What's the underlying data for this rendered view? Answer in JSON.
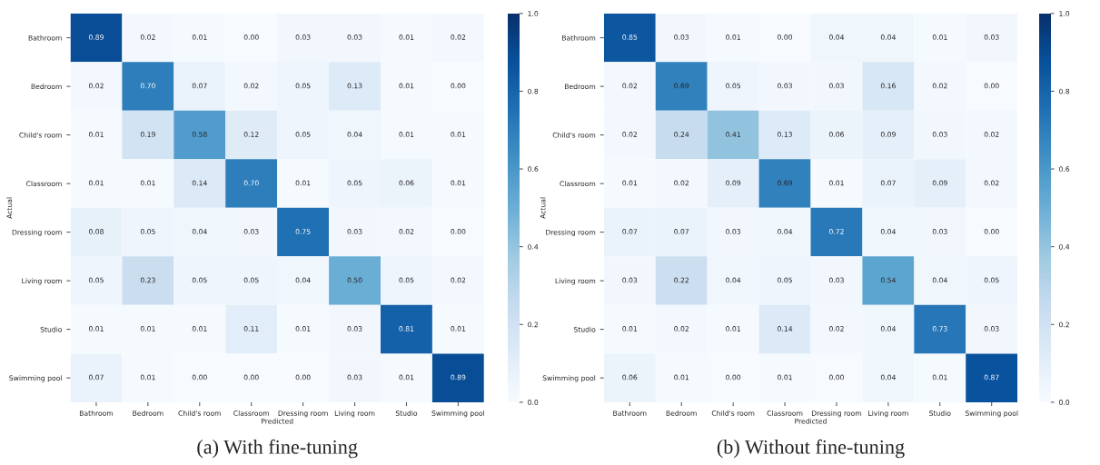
{
  "chart_data": [
    {
      "type": "heatmap",
      "title": "(a) With fine-tuning",
      "xlabel": "Predicted",
      "ylabel": "Actual",
      "categories": [
        "Bathroom",
        "Bedroom",
        "Child's room",
        "Classroom",
        "Dressing room",
        "Living room",
        "Studio",
        "Swimming pool"
      ],
      "y_categories": [
        "Bathroom",
        "Bedroom",
        "Child's room",
        "Classroom",
        "Dressing room",
        "Living room",
        "Studio",
        "Swimming pool"
      ],
      "cells": [
        [
          0.89,
          0.02,
          0.01,
          0.0,
          0.03,
          0.03,
          0.01,
          0.02
        ],
        [
          0.02,
          0.7,
          0.07,
          0.02,
          0.05,
          0.13,
          0.01,
          0.0
        ],
        [
          0.01,
          0.19,
          0.58,
          0.12,
          0.05,
          0.04,
          0.01,
          0.01
        ],
        [
          0.01,
          0.01,
          0.14,
          0.7,
          0.01,
          0.05,
          0.06,
          0.01
        ],
        [
          0.08,
          0.05,
          0.04,
          0.03,
          0.75,
          0.03,
          0.02,
          0.0
        ],
        [
          0.05,
          0.23,
          0.05,
          0.05,
          0.04,
          0.5,
          0.05,
          0.02
        ],
        [
          0.01,
          0.01,
          0.01,
          0.11,
          0.01,
          0.03,
          0.81,
          0.01
        ],
        [
          0.07,
          0.01,
          0.0,
          0.0,
          0.0,
          0.03,
          0.01,
          0.89
        ]
      ],
      "cell_labels": [
        [
          "0.89",
          "0.02",
          "0.01",
          "0.00",
          "0.03",
          "0.03",
          "0.01",
          "0.02"
        ],
        [
          "0.02",
          "0.70",
          "0.07",
          "0.02",
          "0.05",
          "0.13",
          "0.01",
          "0.00"
        ],
        [
          "0.01",
          "0.19",
          "0.58",
          "0.12",
          "0.05",
          "0.04",
          "0.01",
          "0.01"
        ],
        [
          "0.01",
          "0.01",
          "0.14",
          "0.70",
          "0.01",
          "0.05",
          "0.06",
          "0.01"
        ],
        [
          "0.08",
          "0.05",
          "0.04",
          "0.03",
          "0.75",
          "0.03",
          "0.02",
          "0.00"
        ],
        [
          "0.05",
          "0.23",
          "0.05",
          "0.05",
          "0.04",
          "0.50",
          "0.05",
          "0.02"
        ],
        [
          "0.01",
          "0.01",
          "0.01",
          "0.11",
          "0.01",
          "0.03",
          "0.81",
          "0.01"
        ],
        [
          "0.07",
          "0.01",
          "0.00",
          "0.00",
          "0.00",
          "0.03",
          "0.01",
          "0.89"
        ]
      ],
      "clim": [
        0,
        1
      ],
      "cticks": [
        {
          "value": 0,
          "label": "0.0"
        },
        {
          "value": 0.2,
          "label": "0.2"
        },
        {
          "value": 0.4,
          "label": "0.4"
        },
        {
          "value": 0.6,
          "label": "0.6"
        },
        {
          "value": 0.8,
          "label": "0.8"
        },
        {
          "value": 1,
          "label": "1.0"
        }
      ]
    },
    {
      "type": "heatmap",
      "title": "(b) Without fine-tuning",
      "xlabel": "Predicted",
      "ylabel": "Actual",
      "categories": [
        "Bathroom",
        "Bedroom",
        "Child's room",
        "Classroom",
        "Dressing room",
        "Living room",
        "Studio",
        "Swimming pool"
      ],
      "y_categories": [
        "Bathroom",
        "Bedroom",
        "Child's room",
        "Classroom",
        "Dressing room",
        "Living room",
        "Studio",
        "Swimming pool"
      ],
      "cells": [
        [
          0.85,
          0.03,
          0.01,
          0.0,
          0.04,
          0.04,
          0.01,
          0.03
        ],
        [
          0.02,
          0.69,
          0.05,
          0.03,
          0.03,
          0.16,
          0.02,
          0.0
        ],
        [
          0.02,
          0.24,
          0.41,
          0.13,
          0.06,
          0.09,
          0.03,
          0.02
        ],
        [
          0.01,
          0.02,
          0.09,
          0.69,
          0.01,
          0.07,
          0.09,
          0.02
        ],
        [
          0.07,
          0.07,
          0.03,
          0.04,
          0.72,
          0.04,
          0.03,
          0.0
        ],
        [
          0.03,
          0.22,
          0.04,
          0.05,
          0.03,
          0.54,
          0.04,
          0.05
        ],
        [
          0.01,
          0.02,
          0.01,
          0.14,
          0.02,
          0.04,
          0.73,
          0.03
        ],
        [
          0.06,
          0.01,
          0.0,
          0.01,
          0.0,
          0.04,
          0.01,
          0.87
        ]
      ],
      "cell_labels": [
        [
          "0.85",
          "0.03",
          "0.01",
          "0.00",
          "0.04",
          "0.04",
          "0.01",
          "0.03"
        ],
        [
          "0.02",
          "0.69",
          "0.05",
          "0.03",
          "0.03",
          "0.16",
          "0.02",
          "0.00"
        ],
        [
          "0.02",
          "0.24",
          "0.41",
          "0.13",
          "0.06",
          "0.09",
          "0.03",
          "0.02"
        ],
        [
          "0.01",
          "0.02",
          "0.09",
          "0.69",
          "0.01",
          "0.07",
          "0.09",
          "0.02"
        ],
        [
          "0.07",
          "0.07",
          "0.03",
          "0.04",
          "0.72",
          "0.04",
          "0.03",
          "0.00"
        ],
        [
          "0.03",
          "0.22",
          "0.04",
          "0.05",
          "0.03",
          "0.54",
          "0.04",
          "0.05"
        ],
        [
          "0.01",
          "0.02",
          "0.01",
          "0.14",
          "0.02",
          "0.04",
          "0.73",
          "0.03"
        ],
        [
          "0.06",
          "0.01",
          "0.00",
          "0.01",
          "0.00",
          "0.04",
          "0.01",
          "0.87"
        ]
      ],
      "clim": [
        0,
        1
      ],
      "cticks": [
        {
          "value": 0,
          "label": "0.0"
        },
        {
          "value": 0.2,
          "label": "0.2"
        },
        {
          "value": 0.4,
          "label": "0.4"
        },
        {
          "value": 0.6,
          "label": "0.6"
        },
        {
          "value": 0.8,
          "label": "0.8"
        },
        {
          "value": 1,
          "label": "1.0"
        }
      ]
    }
  ]
}
